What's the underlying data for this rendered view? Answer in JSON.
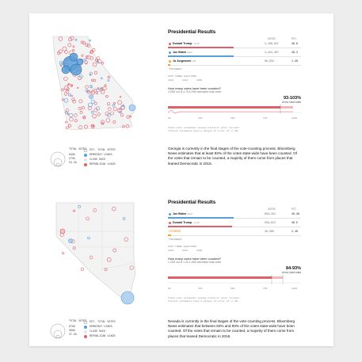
{
  "colors": {
    "red": "#e0606a",
    "blue": "#5a9ed8",
    "orange": "#f2a23a",
    "grey": "#bdbdbd",
    "light_red": "#f3b7bb"
  },
  "georgia": {
    "title": "Presidential Results",
    "col_votes": "VOTES",
    "col_pct": "PCT.",
    "candidates": [
      {
        "name": "Donald Trump",
        "tag": "* GOP",
        "votes": "2,436,937",
        "pct": "49.6",
        "share": 0.496,
        "color": "red"
      },
      {
        "name": "Joe Biden",
        "tag": "DEM",
        "votes": "2,422,467",
        "pct": "49.3",
        "share": 0.493,
        "color": "blue"
      },
      {
        "name": "Jo Jorgensen",
        "tag": "LIB",
        "votes": "60,932",
        "pct": "1.2%",
        "share": 0.012,
        "color": "orange"
      }
    ],
    "incumbent_note": "*INCUMBENT",
    "past_elections_label": "PAST THREE ELECTIONS",
    "past_elections": [
      "2016",
      "2012",
      "2008"
    ],
    "question": "How many votes have been counted?",
    "counted_sub": "4.92M out of 4.75-5.29M estimated total votes",
    "estimate": "93-103%",
    "estimate_sub": "of est. total votes",
    "axis": [
      "0%",
      "25%",
      "50%",
      "75%",
      "100%"
    ],
    "trend_note": "Estimate updated 4 hrs ago",
    "footnote1": "Total vote estimates assume historic voter turnout.",
    "footnote2": "Turnout estimates have a margin of error of +/-8%.",
    "paragraph": "Georgia is currently in the final stages of the vote-counting process. Bloomberg News estimates that at least 93% of the votes state-wide have been counted. Of the votes that remain to be counted, a majority of them come from places that leaned Democratic in 2016.",
    "legend": {
      "total_votes": "TOTAL VOTES",
      "sizes": [
        "649k",
        "270k",
        "54.2k"
      ],
      "est_total": "EST. TOTAL VOTES",
      "dem": "DEMOCRAT LEADS",
      "close": "CLOSE RACE",
      "rep": "REPUBLICAN LEADS"
    }
  },
  "nevada": {
    "title": "Presidential Results",
    "col_votes": "VOTES",
    "col_pct": "PCT.",
    "candidates": [
      {
        "name": "Joe Biden",
        "tag": "DEM",
        "votes": "604,251",
        "pct": "49.4%",
        "share": 0.494,
        "color": "blue"
      },
      {
        "name": "Donald Trump",
        "tag": "* GOP",
        "votes": "592,813",
        "pct": "48.5",
        "share": 0.485,
        "color": "red"
      },
      {
        "name": "OTHERS",
        "tag": "",
        "votes": "26,380",
        "pct": "2.1%",
        "share": 0.021,
        "color": "orange"
      }
    ],
    "incumbent_note": "*INCUMBENT",
    "past_elections_label": "PAST THREE ELECTIONS",
    "past_elections": [
      "2016",
      "2012",
      "2008"
    ],
    "question": "How many votes have been counted?",
    "counted_sub": "1.22M out of 1.32-1.45M estimated total votes",
    "estimate": "84-93%",
    "estimate_sub": "of est. total votes",
    "axis": [
      "0%",
      "25%",
      "50%",
      "75%",
      "100%"
    ],
    "footnote1": "Total vote estimates assume historic voter turnout.",
    "footnote2": "Turnout estimates have a margin of error of +/-8%.",
    "paragraph": "Nevada is currently in the final stages of the vote-counting process. Bloomberg News estimates that between 84% and 93% of the votes state-wide have been counted. Of the votes that remain to be counted, a majority of them come from places that leaned Democratic in 2016.",
    "legend": {
      "total_votes": "TOTAL VOTES",
      "sizes": [
        "876k",
        "368k",
        "37.0k"
      ],
      "est_total": "EST. TOTAL VOTES",
      "dem": "DEMOCRAT LEADS",
      "close": "CLOSE RACE",
      "rep": "REPUBLICAN LEADS"
    }
  }
}
